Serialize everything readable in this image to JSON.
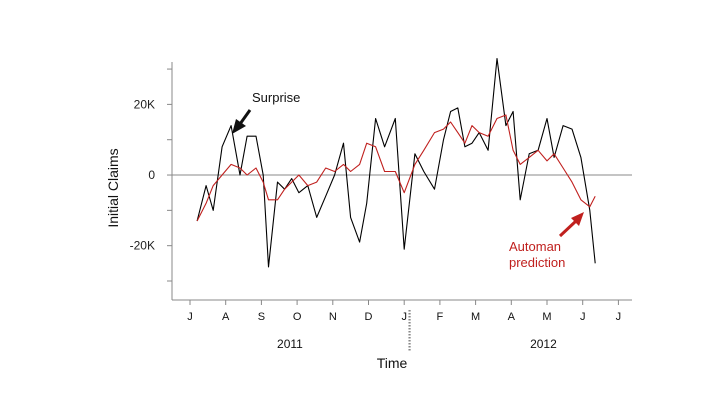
{
  "chart_data": {
    "type": "line",
    "ylabel": "Initial Claims",
    "xlabel": "Time",
    "ylim": [
      -30,
      32
    ],
    "y_ticks": [
      {
        "value": 20,
        "label": "20K"
      },
      {
        "value": 0,
        "label": "0"
      },
      {
        "value": -20,
        "label": "-20K"
      }
    ],
    "x_ticks": [
      {
        "x": 0,
        "label": "J"
      },
      {
        "x": 1,
        "label": "A"
      },
      {
        "x": 2,
        "label": "S"
      },
      {
        "x": 3,
        "label": "O"
      },
      {
        "x": 4,
        "label": "N"
      },
      {
        "x": 5,
        "label": "D"
      },
      {
        "x": 6,
        "label": "J"
      },
      {
        "x": 7,
        "label": "F"
      },
      {
        "x": 8,
        "label": "M"
      },
      {
        "x": 9,
        "label": "A"
      },
      {
        "x": 10,
        "label": "M"
      },
      {
        "x": 11,
        "label": "J"
      },
      {
        "x": 12,
        "label": "J"
      }
    ],
    "year_labels": [
      {
        "x": 2.8,
        "label": "2011"
      },
      {
        "x": 9.9,
        "label": "2012"
      }
    ],
    "year_divider_x": 6.15,
    "zero_line": true,
    "series": [
      {
        "color": "#000000",
        "points": [
          [
            0.2,
            -13
          ],
          [
            0.45,
            -3
          ],
          [
            0.65,
            -10
          ],
          [
            0.9,
            8
          ],
          [
            1.15,
            14
          ],
          [
            1.4,
            0
          ],
          [
            1.6,
            11
          ],
          [
            1.85,
            11
          ],
          [
            2.05,
            0
          ],
          [
            2.2,
            -26
          ],
          [
            2.45,
            -2
          ],
          [
            2.65,
            -4
          ],
          [
            2.85,
            -1
          ],
          [
            3.05,
            -5
          ],
          [
            3.3,
            -3
          ],
          [
            3.55,
            -12
          ],
          [
            3.8,
            -6
          ],
          [
            4.05,
            0
          ],
          [
            4.3,
            9
          ],
          [
            4.5,
            -12
          ],
          [
            4.75,
            -19
          ],
          [
            4.95,
            -8
          ],
          [
            5.2,
            16
          ],
          [
            5.45,
            8
          ],
          [
            5.75,
            16
          ],
          [
            6.0,
            -21
          ],
          [
            6.3,
            6
          ],
          [
            6.55,
            1
          ],
          [
            6.85,
            -4
          ],
          [
            7.1,
            10
          ],
          [
            7.3,
            18
          ],
          [
            7.5,
            19
          ],
          [
            7.7,
            8
          ],
          [
            7.9,
            9
          ],
          [
            8.1,
            12
          ],
          [
            8.35,
            7
          ],
          [
            8.6,
            33
          ],
          [
            8.85,
            14
          ],
          [
            9.05,
            18
          ],
          [
            9.25,
            -7
          ],
          [
            9.5,
            6
          ],
          [
            9.75,
            7
          ],
          [
            10.0,
            16
          ],
          [
            10.2,
            5
          ],
          [
            10.45,
            14
          ],
          [
            10.7,
            13
          ],
          [
            10.95,
            5
          ],
          [
            11.2,
            -10
          ],
          [
            11.35,
            -25
          ]
        ]
      },
      {
        "color": "#c0201e",
        "points": [
          [
            0.2,
            -13
          ],
          [
            0.45,
            -8
          ],
          [
            0.65,
            -3
          ],
          [
            0.9,
            0
          ],
          [
            1.15,
            3
          ],
          [
            1.4,
            2
          ],
          [
            1.6,
            0
          ],
          [
            1.85,
            2
          ],
          [
            2.05,
            -2
          ],
          [
            2.2,
            -7
          ],
          [
            2.45,
            -7
          ],
          [
            2.65,
            -4
          ],
          [
            2.85,
            -2
          ],
          [
            3.05,
            0
          ],
          [
            3.3,
            -3
          ],
          [
            3.55,
            -2
          ],
          [
            3.8,
            2
          ],
          [
            4.05,
            1
          ],
          [
            4.3,
            3
          ],
          [
            4.5,
            1
          ],
          [
            4.75,
            3
          ],
          [
            4.95,
            9
          ],
          [
            5.2,
            8
          ],
          [
            5.45,
            1
          ],
          [
            5.75,
            1
          ],
          [
            6.0,
            -5
          ],
          [
            6.3,
            3
          ],
          [
            6.55,
            7
          ],
          [
            6.85,
            12
          ],
          [
            7.1,
            13
          ],
          [
            7.3,
            15
          ],
          [
            7.5,
            12
          ],
          [
            7.7,
            9
          ],
          [
            7.9,
            14
          ],
          [
            8.1,
            12
          ],
          [
            8.35,
            11
          ],
          [
            8.6,
            16
          ],
          [
            8.85,
            17
          ],
          [
            9.05,
            7
          ],
          [
            9.25,
            3
          ],
          [
            9.5,
            5
          ],
          [
            9.75,
            7
          ],
          [
            10.0,
            4
          ],
          [
            10.2,
            6
          ],
          [
            10.45,
            2
          ],
          [
            10.7,
            -2
          ],
          [
            10.95,
            -7
          ],
          [
            11.2,
            -9
          ],
          [
            11.35,
            -6
          ]
        ]
      }
    ],
    "annotations": [
      {
        "text": "Surprise",
        "color": "#111111"
      },
      {
        "text_lines": [
          "Automan",
          "prediction"
        ],
        "color": "#c0201e"
      }
    ]
  }
}
